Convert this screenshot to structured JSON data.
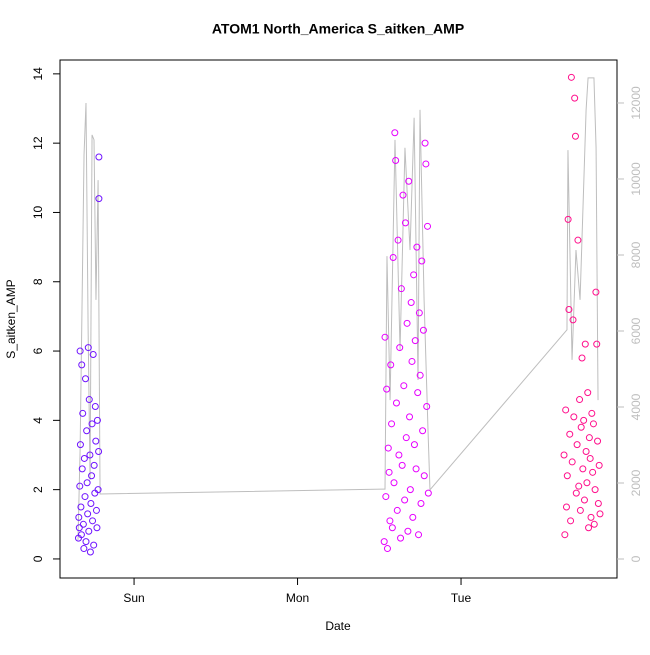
{
  "chart_data": {
    "type": "scatter",
    "title": "ATOM1 North_America S_aitken_AMP",
    "xlabel": "Date",
    "ylabel": "S_aitken_AMP",
    "xlim": [
      0.547,
      3.954
    ],
    "ylim": [
      -0.55,
      14.4
    ],
    "y2lim": [
      -500,
      13131
    ],
    "xticks": [
      {
        "value": 1,
        "label": "Sun"
      },
      {
        "value": 2,
        "label": "Mon"
      },
      {
        "value": 3,
        "label": "Tue"
      }
    ],
    "yticks": [
      0,
      2,
      4,
      6,
      8,
      10,
      12,
      14
    ],
    "y2ticks": [
      0,
      2000,
      4000,
      6000,
      8000,
      10000,
      12000
    ],
    "series": [
      {
        "color": "#7014ff",
        "x": [
          0.66,
          0.662,
          0.665,
          0.668,
          0.67,
          0.672,
          0.675,
          0.678,
          0.68,
          0.683,
          0.686,
          0.69,
          0.693,
          0.696,
          0.7,
          0.703,
          0.706,
          0.71,
          0.713,
          0.716,
          0.72,
          0.723,
          0.726,
          0.73,
          0.733,
          0.736,
          0.74,
          0.743,
          0.746,
          0.75,
          0.753,
          0.756,
          0.76,
          0.763,
          0.766,
          0.77,
          0.773,
          0.776,
          0.78,
          0.783,
          0.785,
          0.785
        ],
        "values": [
          0.6,
          1.2,
          0.9,
          2.1,
          6.0,
          3.3,
          1.5,
          0.7,
          5.6,
          2.6,
          4.2,
          1.0,
          0.3,
          2.9,
          1.8,
          5.2,
          0.5,
          3.7,
          2.2,
          1.3,
          6.1,
          0.8,
          4.6,
          3.0,
          0.2,
          1.6,
          2.4,
          3.9,
          1.1,
          5.9,
          0.4,
          2.7,
          1.9,
          4.4,
          3.4,
          1.4,
          0.9,
          4.0,
          2.0,
          3.1,
          11.6,
          10.4
        ]
      },
      {
        "color": "#e600ff",
        "x": [
          2.53,
          2.535,
          2.54,
          2.545,
          2.55,
          2.555,
          2.56,
          2.565,
          2.57,
          2.575,
          2.58,
          2.585,
          2.59,
          2.595,
          2.6,
          2.605,
          2.61,
          2.615,
          2.62,
          2.625,
          2.63,
          2.635,
          2.64,
          2.645,
          2.65,
          2.655,
          2.66,
          2.665,
          2.67,
          2.675,
          2.68,
          2.685,
          2.69,
          2.695,
          2.7,
          2.705,
          2.71,
          2.715,
          2.72,
          2.725,
          2.73,
          2.735,
          2.74,
          2.745,
          2.75,
          2.755,
          2.76,
          2.765,
          2.77,
          2.775,
          2.78,
          2.785,
          2.79,
          2.795,
          2.8
        ],
        "values": [
          0.5,
          6.4,
          1.8,
          4.9,
          0.3,
          3.2,
          2.5,
          1.1,
          5.6,
          3.9,
          0.9,
          8.7,
          2.2,
          12.3,
          11.5,
          4.5,
          1.4,
          9.2,
          3.0,
          6.1,
          0.6,
          7.8,
          2.7,
          10.5,
          5.0,
          1.7,
          9.7,
          3.5,
          6.8,
          0.8,
          10.9,
          4.1,
          2.0,
          7.4,
          5.7,
          1.2,
          8.2,
          3.3,
          6.3,
          2.6,
          9.0,
          4.8,
          0.7,
          7.1,
          5.3,
          1.6,
          8.6,
          3.7,
          6.6,
          2.4,
          12.0,
          11.4,
          4.4,
          9.6,
          1.9
        ]
      },
      {
        "color": "#ff0f8c",
        "x": [
          3.63,
          3.635,
          3.64,
          3.645,
          3.65,
          3.655,
          3.66,
          3.665,
          3.67,
          3.675,
          3.68,
          3.685,
          3.69,
          3.695,
          3.7,
          3.705,
          3.71,
          3.715,
          3.72,
          3.725,
          3.73,
          3.735,
          3.74,
          3.745,
          3.75,
          3.755,
          3.76,
          3.765,
          3.77,
          3.775,
          3.78,
          3.785,
          3.79,
          3.795,
          3.8,
          3.805,
          3.81,
          3.815,
          3.82,
          3.825,
          3.83,
          3.835,
          3.84,
          3.845,
          3.85
        ],
        "values": [
          3.0,
          0.7,
          4.3,
          1.5,
          2.4,
          9.8,
          7.2,
          3.6,
          1.1,
          13.9,
          2.8,
          6.9,
          4.1,
          13.3,
          12.2,
          1.9,
          3.3,
          9.2,
          2.1,
          4.6,
          1.4,
          3.8,
          5.8,
          2.6,
          4.0,
          1.7,
          6.2,
          3.1,
          2.2,
          4.8,
          0.9,
          3.5,
          2.9,
          1.2,
          4.2,
          2.5,
          3.9,
          1.0,
          2.0,
          7.7,
          6.2,
          3.4,
          1.6,
          2.7,
          1.3
        ]
      },
      {
        "type": "line",
        "axis": "y2",
        "color": "#bebebe",
        "x": [
          0.657,
          0.67,
          0.694,
          0.706,
          0.719,
          0.731,
          0.743,
          0.755,
          0.767,
          0.78,
          0.792,
          2.535,
          2.547,
          2.566,
          2.596,
          2.627,
          2.657,
          2.688,
          2.713,
          2.737,
          2.749,
          2.774,
          2.798,
          2.81,
          3.648,
          3.654,
          3.679,
          3.703,
          3.728,
          3.765,
          3.777,
          3.813,
          3.826,
          3.838
        ],
        "values": [
          500,
          2870,
          10630,
          12000,
          6030,
          2080,
          11160,
          11030,
          6820,
          9970,
          1710,
          1840,
          7970,
          4180,
          11030,
          5500,
          10820,
          8130,
          11610,
          4710,
          11820,
          6820,
          3390,
          1820,
          6030,
          10760,
          5240,
          8130,
          6820,
          11820,
          12660,
          12660,
          10820,
          4180
        ]
      }
    ]
  }
}
